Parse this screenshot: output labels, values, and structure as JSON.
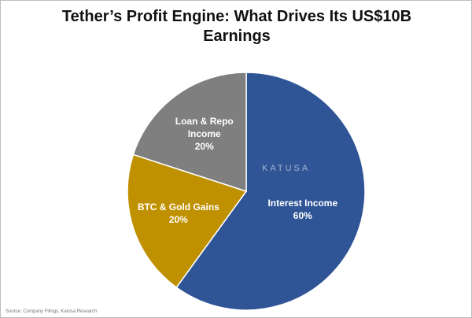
{
  "chart_data": {
    "type": "pie",
    "title": "Tether’s Profit Engine: What Drives Its US$10B Earnings",
    "categories": [
      "Interest Income",
      "BTC & Gold Gains",
      "Loan & Repo Income"
    ],
    "values": [
      60,
      20,
      20
    ],
    "value_labels": [
      "60%",
      "20%",
      "20%"
    ],
    "colors": [
      "#2f5597",
      "#bf9000",
      "#7f7f7f"
    ],
    "source": "Source: Company Filings, Katusa Research",
    "watermark": "KATUSA"
  }
}
